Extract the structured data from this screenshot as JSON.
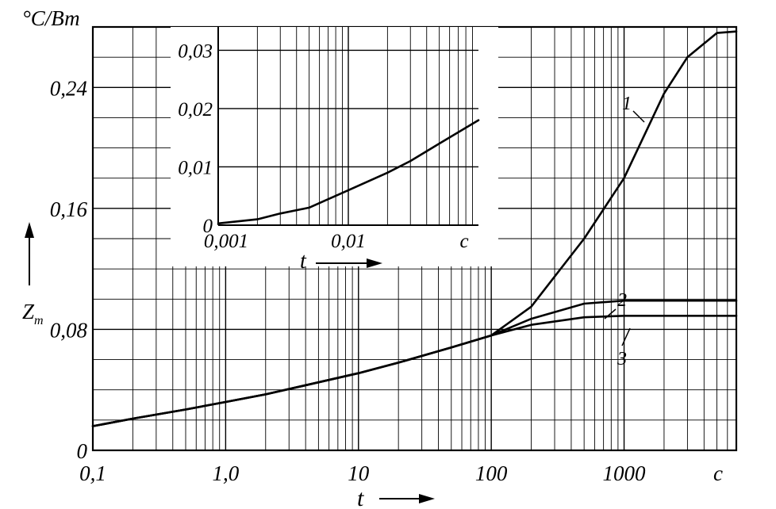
{
  "chart_data": [
    {
      "type": "line",
      "x_scale": "log",
      "xlim": [
        0.1,
        7000
      ],
      "ylim": [
        0,
        0.28
      ],
      "xlabel": "t",
      "ylabel": "Z_т",
      "yunit": "°C/Вт",
      "xunit": "с",
      "grid": true,
      "x_ticks": [
        "0,1",
        "1,0",
        "10",
        "100",
        "1000"
      ],
      "y_ticks": [
        {
          "value": 0,
          "label": "0"
        },
        {
          "value": 0.08,
          "label": "0,08"
        },
        {
          "value": 0.16,
          "label": "0,16"
        },
        {
          "value": 0.24,
          "label": "0,24"
        }
      ],
      "series": [
        {
          "name": "1",
          "x": [
            0.1,
            0.2,
            0.5,
            1,
            2,
            5,
            10,
            20,
            50,
            100,
            200,
            500,
            1000,
            2000,
            3000,
            5000,
            7000
          ],
          "y": [
            0.016,
            0.021,
            0.027,
            0.032,
            0.037,
            0.045,
            0.051,
            0.058,
            0.068,
            0.076,
            0.095,
            0.14,
            0.18,
            0.236,
            0.26,
            0.276,
            0.277
          ]
        },
        {
          "name": "2",
          "x": [
            0.1,
            0.2,
            0.5,
            1,
            2,
            5,
            10,
            20,
            50,
            100,
            200,
            500,
            1000,
            2000,
            5000,
            7000
          ],
          "y": [
            0.016,
            0.021,
            0.027,
            0.032,
            0.037,
            0.045,
            0.051,
            0.058,
            0.068,
            0.076,
            0.087,
            0.097,
            0.099,
            0.099,
            0.099,
            0.099
          ]
        },
        {
          "name": "3",
          "x": [
            0.1,
            0.2,
            0.5,
            1,
            2,
            5,
            10,
            20,
            50,
            100,
            200,
            500,
            1000,
            2000,
            5000,
            7000
          ],
          "y": [
            0.016,
            0.021,
            0.027,
            0.032,
            0.037,
            0.045,
            0.051,
            0.058,
            0.068,
            0.076,
            0.083,
            0.088,
            0.089,
            0.089,
            0.089,
            0.089
          ]
        }
      ]
    },
    {
      "type": "line",
      "x_scale": "log",
      "xlim": [
        0.001,
        0.1
      ],
      "ylim": [
        0,
        0.034
      ],
      "xlabel": "t",
      "xunit": "с",
      "grid": true,
      "x_ticks": [
        "0,001",
        "0,01"
      ],
      "y_ticks": [
        {
          "value": 0,
          "label": "0"
        },
        {
          "value": 0.01,
          "label": "0,01"
        },
        {
          "value": 0.02,
          "label": "0,02"
        },
        {
          "value": 0.03,
          "label": "0,03"
        }
      ],
      "series": [
        {
          "x": [
            0.001,
            0.002,
            0.003,
            0.005,
            0.01,
            0.02,
            0.03,
            0.05,
            0.1
          ],
          "y": [
            0.0003,
            0.001,
            0.002,
            0.003,
            0.006,
            0.009,
            0.011,
            0.014,
            0.018
          ]
        }
      ]
    }
  ]
}
